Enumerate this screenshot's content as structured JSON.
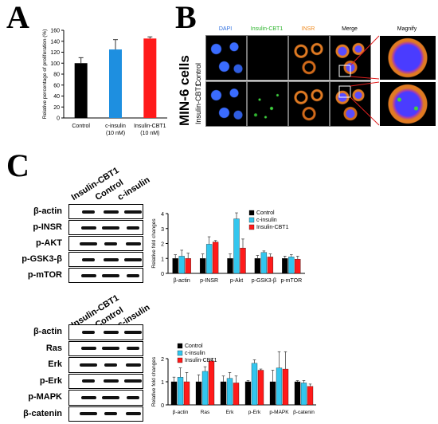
{
  "panel_labels": {
    "a": "A",
    "b": "B",
    "c": "C"
  },
  "panel_a": {
    "chart_data": {
      "type": "bar",
      "ylabel": "Relative percentage of proliferation (%)",
      "ylim": [
        0,
        160
      ],
      "yticks": [
        "0",
        "20",
        "40",
        "60",
        "80",
        "100",
        "120",
        "140",
        "160"
      ],
      "categories": [
        [
          "Control"
        ],
        [
          "c-insulin",
          "(10 nM)"
        ],
        [
          "Insulin-CBT1",
          "(10 nM)"
        ]
      ],
      "values": [
        100,
        125,
        145
      ],
      "errors": [
        10,
        18,
        3
      ],
      "colors": [
        "#000000",
        "#1e8fe0",
        "#ff1a1a"
      ]
    }
  },
  "panel_b": {
    "side_label": "MIN-6 cells",
    "row_labels": [
      "Control",
      "Insulin-CBT1"
    ],
    "columns": [
      {
        "label": "DAPI",
        "color": "#2f6fe0"
      },
      {
        "label": "Insulin-CBT1",
        "color": "#2fb52f"
      },
      {
        "label": "INSR",
        "color": "#f08a1e"
      },
      {
        "label": "Merge",
        "color": "#000000"
      },
      {
        "label": "Magnify",
        "color": "#000000"
      }
    ]
  },
  "panel_c": {
    "top_blot": {
      "lanes": [
        "Insulin-CBT1",
        "Control",
        "c-insulin"
      ],
      "rows": [
        "β-actin",
        "p-INSR",
        "p-AKT",
        "p-GSK3-β",
        "p-mTOR"
      ]
    },
    "bottom_blot": {
      "lanes": [
        "Insulin-CBT1",
        "Control",
        "c-insulin"
      ],
      "rows": [
        "β-actin",
        "Ras",
        "Erk",
        "p-Erk",
        "p-MAPK",
        "β-catenin"
      ]
    },
    "top_chart": {
      "chart_data": {
        "type": "bar",
        "ylabel": "Relative fold changes",
        "ylim": [
          0,
          4
        ],
        "yticks": [
          "0",
          "1",
          "2",
          "3",
          "4"
        ],
        "categories": [
          "β-actin",
          "p-INSR",
          "p-Akt",
          "p-GSK3-β",
          "p-mTOR"
        ],
        "series": [
          {
            "name": "Control",
            "color": "#000000",
            "values": [
              1.0,
              1.0,
              1.0,
              1.0,
              1.0
            ],
            "errors": [
              0.25,
              0.3,
              0.3,
              0.2,
              0.15
            ]
          },
          {
            "name": "c-insulin",
            "color": "#33c6ee",
            "values": [
              1.15,
              1.95,
              3.65,
              1.4,
              1.1
            ],
            "errors": [
              0.4,
              0.5,
              0.4,
              0.1,
              0.15
            ]
          },
          {
            "name": "Insulin-CBT1",
            "color": "#ff1a1a",
            "values": [
              1.0,
              2.1,
              1.7,
              1.1,
              0.95
            ],
            "errors": [
              0.35,
              0.1,
              0.6,
              0.2,
              0.2
            ]
          }
        ],
        "legend": "top-right"
      }
    },
    "bottom_chart": {
      "chart_data": {
        "type": "bar",
        "ylabel": "Relative fold changes",
        "ylim": [
          0,
          2
        ],
        "yticks": [
          "0",
          "1",
          "2"
        ],
        "categories": [
          "β-actin",
          "Ras",
          "Erk",
          "p-Erk",
          "p-MAPK",
          "β-catenin"
        ],
        "series": [
          {
            "name": "Control",
            "color": "#000000",
            "values": [
              1.0,
              1.0,
              1.0,
              1.0,
              1.0,
              1.0
            ],
            "errors": [
              0.2,
              0.3,
              0.25,
              0.05,
              0.5,
              0.05
            ]
          },
          {
            "name": "c-insulin",
            "color": "#33c6ee",
            "values": [
              1.2,
              1.45,
              1.15,
              1.8,
              1.6,
              0.95
            ],
            "errors": [
              0.4,
              0.2,
              0.25,
              0.15,
              0.9,
              0.1
            ]
          },
          {
            "name": "Insulin-CBT1",
            "color": "#ff1a1a",
            "values": [
              1.0,
              1.9,
              0.95,
              1.5,
              1.55,
              0.8
            ],
            "errors": [
              0.4,
              0.05,
              0.3,
              0.05,
              0.8,
              0.1
            ]
          }
        ],
        "legend": "top-left"
      }
    }
  }
}
